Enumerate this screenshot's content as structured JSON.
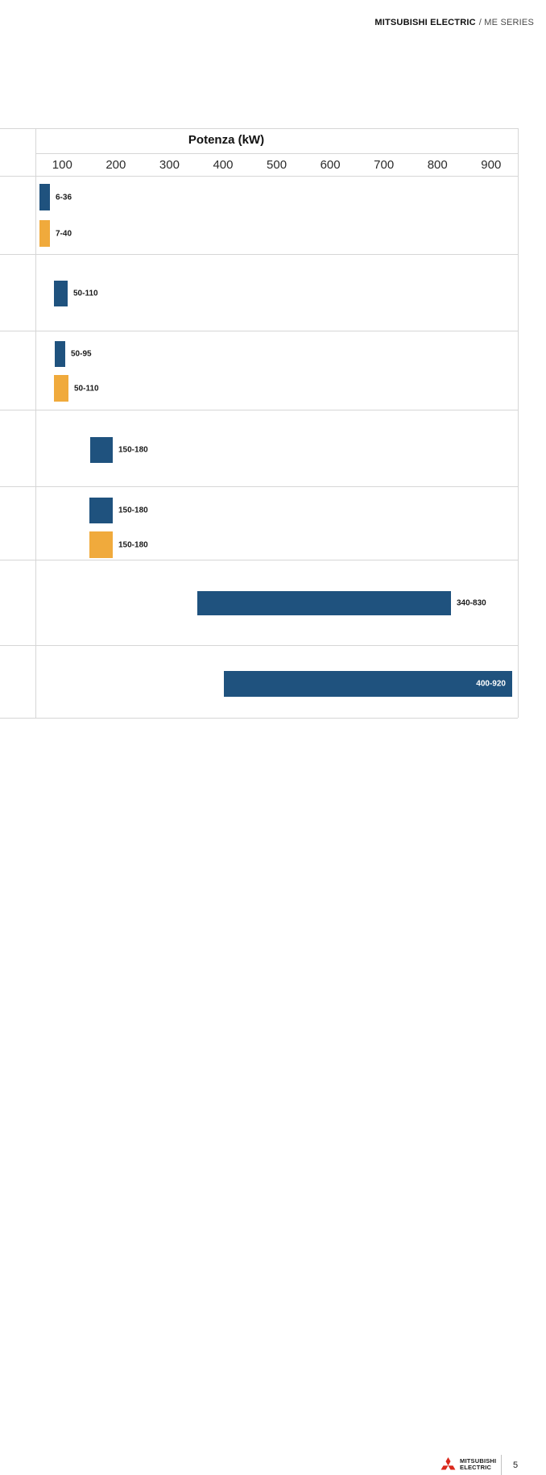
{
  "header": {
    "brand": "MITSUBISHI ELECTRIC",
    "series": "/ ME SERIES"
  },
  "chart_data": {
    "type": "bar",
    "orientation": "horizontal-range",
    "title": "Potenza (kW)",
    "xlabel": "Potenza (kW)",
    "xticks": [
      100,
      200,
      300,
      400,
      500,
      600,
      700,
      800,
      900
    ],
    "xlim": [
      0,
      950
    ],
    "legend_position": "none",
    "grid": "horizontal-row-separators",
    "colors": {
      "blue": "#1f527e",
      "orange": "#f0aa3c"
    },
    "rows": [
      {
        "bars": [
          {
            "label": "6-36",
            "range_kw": [
              6,
              36
            ],
            "color": "blue"
          },
          {
            "label": "7-40",
            "range_kw": [
              7,
              40
            ],
            "color": "orange"
          }
        ]
      },
      {
        "bars": [
          {
            "label": "50-110",
            "range_kw": [
              50,
              110
            ],
            "color": "blue"
          }
        ]
      },
      {
        "bars": [
          {
            "label": "50-95",
            "range_kw": [
              50,
              95
            ],
            "color": "blue"
          },
          {
            "label": "50-110",
            "range_kw": [
              50,
              110
            ],
            "color": "orange"
          }
        ]
      },
      {
        "bars": [
          {
            "label": "150-180",
            "range_kw": [
              150,
              180
            ],
            "color": "blue"
          }
        ]
      },
      {
        "bars": [
          {
            "label": "150-180",
            "range_kw": [
              150,
              180
            ],
            "color": "blue"
          },
          {
            "label": "150-180",
            "range_kw": [
              150,
              180
            ],
            "color": "orange"
          }
        ]
      },
      {
        "bars": [
          {
            "label": "340-830",
            "range_kw": [
              340,
              830
            ],
            "color": "blue"
          }
        ]
      },
      {
        "bars": [
          {
            "label": "400-920",
            "range_kw": [
              400,
              920
            ],
            "color": "blue",
            "label_inside": true,
            "label_color": "#ffffff"
          }
        ]
      }
    ]
  },
  "footer": {
    "logo": "mitsubishi-three-diamonds",
    "logo_color": "#da291c",
    "brand_line1": "MITSUBISHI",
    "brand_line2": "ELECTRIC",
    "page_number": "5"
  }
}
